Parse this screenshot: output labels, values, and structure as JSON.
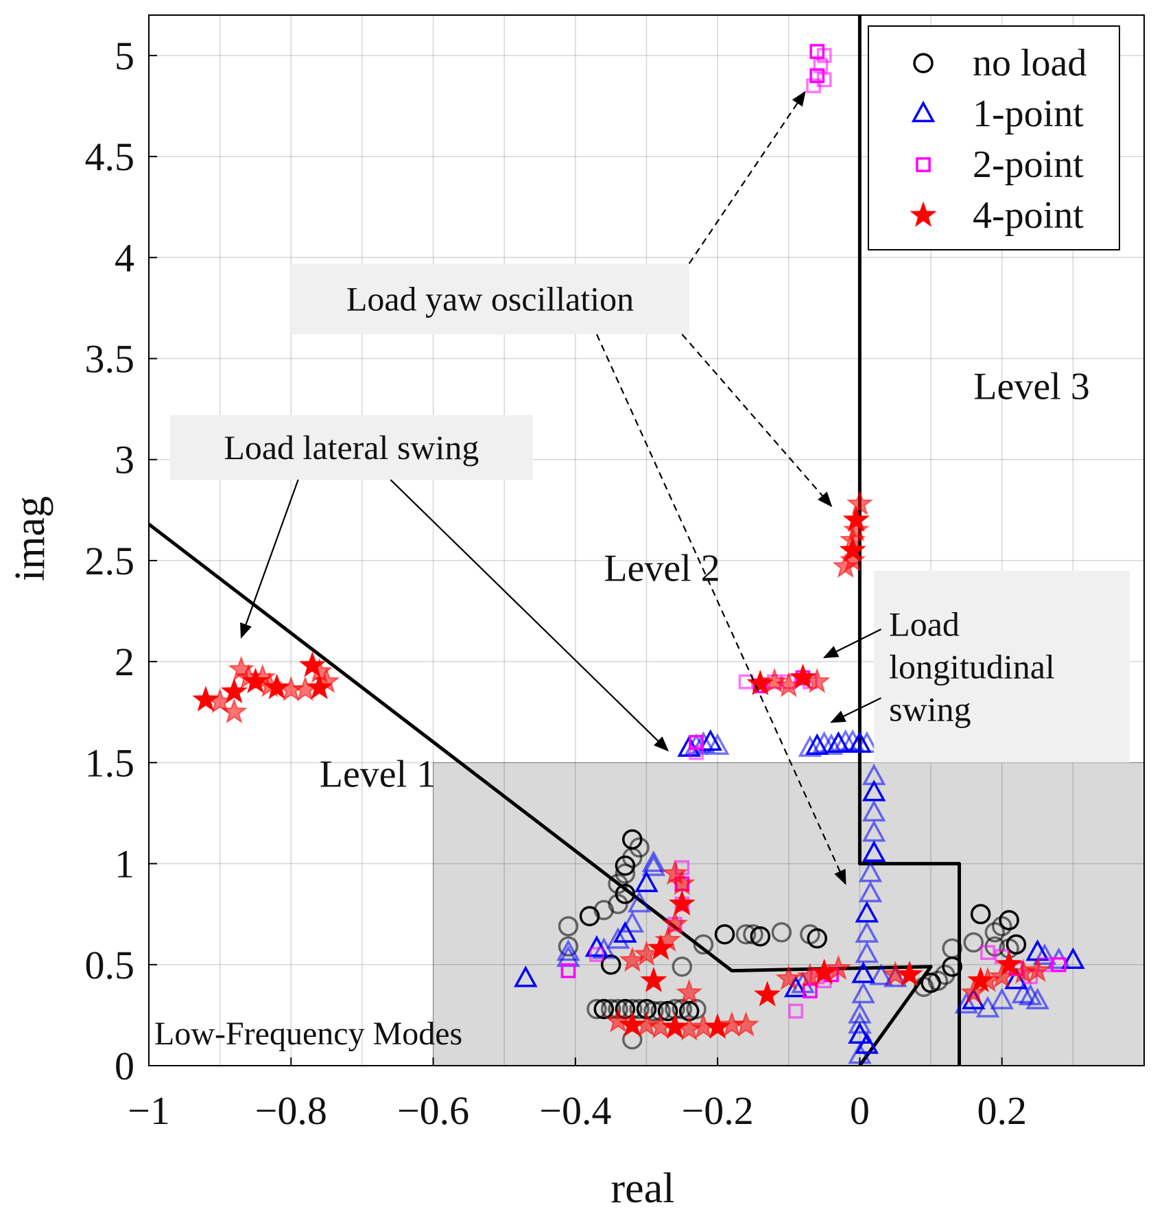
{
  "chart_data": {
    "type": "scatter",
    "title": "",
    "xlabel": "real",
    "ylabel": "imag",
    "xlim": [
      -1,
      0.4
    ],
    "ylim": [
      0,
      5.2
    ],
    "grid": true,
    "legend_position": "top-right",
    "x_ticks": [
      {
        "value": -1,
        "label": "−1"
      },
      {
        "value": -0.8,
        "label": "−0.8"
      },
      {
        "value": -0.6,
        "label": "−0.6"
      },
      {
        "value": -0.4,
        "label": "−0.4"
      },
      {
        "value": -0.2,
        "label": "−0.2"
      },
      {
        "value": 0,
        "label": "0"
      },
      {
        "value": 0.2,
        "label": "0.2"
      }
    ],
    "y_ticks": [
      {
        "value": 0,
        "label": "0"
      },
      {
        "value": 0.5,
        "label": "0.5"
      },
      {
        "value": 1,
        "label": "1"
      },
      {
        "value": 1.5,
        "label": "1.5"
      },
      {
        "value": 2,
        "label": "2"
      },
      {
        "value": 2.5,
        "label": "2.5"
      },
      {
        "value": 3,
        "label": "3"
      },
      {
        "value": 3.5,
        "label": "3.5"
      },
      {
        "value": 4,
        "label": "4"
      },
      {
        "value": 4.5,
        "label": "4.5"
      },
      {
        "value": 5,
        "label": "5"
      }
    ],
    "colors": {
      "no_load": "#000000",
      "one_point": "#0000ff",
      "two_point": "#ff00ff",
      "four_point": "#ff0000",
      "region": "#d9d9d9",
      "boundary": "#000000",
      "annotation_box": "#f0f0f0"
    },
    "region": {
      "label": "Low-Frequency Modes",
      "x_range": [
        -0.6,
        0.4
      ],
      "y_range": [
        0,
        1.5
      ]
    },
    "boundaries": [
      {
        "name": "level-1-2-boundary",
        "points": [
          [
            -1,
            2.68
          ],
          [
            -0.18,
            0.47
          ],
          [
            0.1,
            0.49
          ],
          [
            0,
            0
          ]
        ]
      },
      {
        "name": "level-2-3-boundary",
        "points": [
          [
            0,
            5.2
          ],
          [
            0,
            1.0
          ],
          [
            0.14,
            1.0
          ],
          [
            0.14,
            0
          ]
        ]
      }
    ],
    "level_labels": [
      {
        "text": "Level  1",
        "x": -0.76,
        "y": 1.38
      },
      {
        "text": "Level  2",
        "x": -0.36,
        "y": 2.4
      },
      {
        "text": "Level  3",
        "x": 0.16,
        "y": 3.3
      }
    ],
    "annotations": [
      {
        "name": "lateral-swing",
        "lines": [
          "Load lateral swing"
        ],
        "box": [
          -0.97,
          2.9,
          -0.46,
          3.22
        ],
        "arrows": [
          {
            "from": [
              -0.79,
              2.9
            ],
            "to": [
              -0.87,
              2.12
            ],
            "dashed": false
          },
          {
            "from": [
              -0.66,
              2.9
            ],
            "to": [
              -0.27,
              1.56
            ],
            "dashed": false
          }
        ]
      },
      {
        "name": "yaw-oscillation",
        "lines": [
          "Load yaw oscillation"
        ],
        "box": [
          -0.8,
          3.62,
          -0.24,
          3.97
        ],
        "arrows": [
          {
            "from": [
              -0.24,
              3.97
            ],
            "to": [
              -0.077,
              4.82
            ],
            "dashed": true
          },
          {
            "from": [
              -0.25,
              3.62
            ],
            "to": [
              -0.04,
              2.77
            ],
            "dashed": true
          },
          {
            "from": [
              -0.37,
              3.62
            ],
            "to": [
              -0.02,
              0.9
            ],
            "dashed": true
          }
        ]
      },
      {
        "name": "longitudinal-swing",
        "lines": [
          "Load",
          "longitudinal",
          "swing"
        ],
        "box": [
          0.02,
          1.5,
          0.38,
          2.45
        ],
        "arrows": [
          {
            "from": [
              0.03,
              2.16
            ],
            "to": [
              -0.05,
              2.02
            ],
            "dashed": false
          },
          {
            "from": [
              0.03,
              1.82
            ],
            "to": [
              -0.04,
              1.7
            ],
            "dashed": false
          }
        ]
      }
    ],
    "series": [
      {
        "name": "no load",
        "marker": "circle",
        "color": "#000000",
        "points": [
          [
            -0.32,
            1.12
          ],
          [
            -0.31,
            1.08
          ],
          [
            -0.32,
            1.03
          ],
          [
            -0.33,
            0.99
          ],
          [
            -0.33,
            0.95
          ],
          [
            -0.34,
            0.9
          ],
          [
            -0.33,
            0.85
          ],
          [
            -0.34,
            0.8
          ],
          [
            -0.36,
            0.77
          ],
          [
            -0.38,
            0.74
          ],
          [
            -0.41,
            0.69
          ],
          [
            -0.41,
            0.59
          ],
          [
            -0.35,
            0.5
          ],
          [
            -0.25,
            0.49
          ],
          [
            -0.22,
            0.6
          ],
          [
            -0.19,
            0.65
          ],
          [
            -0.16,
            0.65
          ],
          [
            -0.15,
            0.65
          ],
          [
            -0.14,
            0.64
          ],
          [
            -0.11,
            0.66
          ],
          [
            -0.07,
            0.65
          ],
          [
            -0.06,
            0.63
          ],
          [
            -0.32,
            0.13
          ],
          [
            -0.37,
            0.28
          ],
          [
            -0.36,
            0.28
          ],
          [
            -0.35,
            0.28
          ],
          [
            -0.34,
            0.28
          ],
          [
            -0.33,
            0.28
          ],
          [
            -0.32,
            0.28
          ],
          [
            -0.31,
            0.28
          ],
          [
            -0.3,
            0.28
          ],
          [
            -0.29,
            0.27
          ],
          [
            -0.28,
            0.27
          ],
          [
            -0.27,
            0.27
          ],
          [
            -0.26,
            0.28
          ],
          [
            -0.25,
            0.28
          ],
          [
            -0.24,
            0.27
          ],
          [
            -0.23,
            0.28
          ],
          [
            0.09,
            0.39
          ],
          [
            0.1,
            0.41
          ],
          [
            0.11,
            0.42
          ],
          [
            0.12,
            0.45
          ],
          [
            0.13,
            0.49
          ],
          [
            0.13,
            0.58
          ],
          [
            0.16,
            0.61
          ],
          [
            0.17,
            0.75
          ],
          [
            0.19,
            0.66
          ],
          [
            0.2,
            0.69
          ],
          [
            0.21,
            0.72
          ],
          [
            0.21,
            0.58
          ],
          [
            0.19,
            0.59
          ],
          [
            0.22,
            0.6
          ]
        ]
      },
      {
        "name": "1-point",
        "marker": "triangle",
        "color": "#0000ff",
        "points": [
          [
            -0.47,
            0.43
          ],
          [
            -0.41,
            0.56
          ],
          [
            -0.41,
            0.53
          ],
          [
            -0.37,
            0.58
          ],
          [
            -0.36,
            0.57
          ],
          [
            -0.34,
            0.62
          ],
          [
            -0.33,
            0.65
          ],
          [
            -0.32,
            0.7
          ],
          [
            -0.31,
            0.8
          ],
          [
            -0.3,
            0.9
          ],
          [
            -0.29,
            0.98
          ],
          [
            -0.29,
            1.0
          ],
          [
            -0.24,
            1.57
          ],
          [
            -0.23,
            1.58
          ],
          [
            -0.22,
            1.59
          ],
          [
            -0.21,
            1.6
          ],
          [
            -0.2,
            1.58
          ],
          [
            -0.07,
            1.57
          ],
          [
            -0.06,
            1.58
          ],
          [
            -0.05,
            1.59
          ],
          [
            -0.04,
            1.58
          ],
          [
            -0.03,
            1.59
          ],
          [
            -0.02,
            1.6
          ],
          [
            -0.01,
            1.6
          ],
          [
            0.0,
            1.59
          ],
          [
            0.01,
            1.59
          ],
          [
            0.0,
            0.05
          ],
          [
            0.0,
            0.15
          ],
          [
            0.0,
            0.25
          ],
          [
            0.005,
            0.35
          ],
          [
            0.005,
            0.45
          ],
          [
            0.01,
            0.55
          ],
          [
            0.01,
            0.65
          ],
          [
            0.01,
            0.75
          ],
          [
            0.015,
            0.85
          ],
          [
            0.015,
            0.95
          ],
          [
            0.02,
            1.05
          ],
          [
            0.02,
            1.15
          ],
          [
            0.02,
            1.25
          ],
          [
            0.02,
            1.35
          ],
          [
            0.02,
            1.43
          ],
          [
            0.0,
            0.2
          ],
          [
            0.01,
            0.1
          ],
          [
            0.03,
            0.44
          ],
          [
            0.05,
            0.43
          ],
          [
            -0.09,
            0.38
          ],
          [
            -0.08,
            0.4
          ],
          [
            0.15,
            0.3
          ],
          [
            0.16,
            0.32
          ],
          [
            0.18,
            0.28
          ],
          [
            0.2,
            0.32
          ],
          [
            0.22,
            0.42
          ],
          [
            0.23,
            0.35
          ],
          [
            0.24,
            0.34
          ],
          [
            0.25,
            0.56
          ],
          [
            0.26,
            0.54
          ],
          [
            0.28,
            0.52
          ],
          [
            0.3,
            0.52
          ],
          [
            0.25,
            0.32
          ]
        ]
      },
      {
        "name": "2-point",
        "marker": "square",
        "color": "#ff00ff",
        "points": [
          [
            -0.06,
            5.02
          ],
          [
            -0.05,
            5.0
          ],
          [
            -0.055,
            4.95
          ],
          [
            -0.06,
            4.9
          ],
          [
            -0.05,
            4.88
          ],
          [
            -0.065,
            4.85
          ],
          [
            -0.41,
            0.47
          ],
          [
            -0.37,
            0.55
          ],
          [
            -0.25,
            0.98
          ],
          [
            -0.25,
            0.9
          ],
          [
            -0.25,
            0.8
          ],
          [
            -0.26,
            0.7
          ],
          [
            -0.23,
            1.6
          ],
          [
            -0.23,
            1.55
          ],
          [
            -0.16,
            1.9
          ],
          [
            -0.14,
            1.88
          ],
          [
            -0.12,
            1.9
          ],
          [
            -0.1,
            1.9
          ],
          [
            -0.08,
            1.92
          ],
          [
            -0.07,
            1.9
          ],
          [
            -0.09,
            0.27
          ],
          [
            -0.07,
            0.37
          ],
          [
            -0.06,
            0.44
          ],
          [
            -0.05,
            0.42
          ],
          [
            -0.04,
            0.45
          ],
          [
            0.18,
            0.56
          ],
          [
            0.2,
            0.54
          ],
          [
            0.22,
            0.48
          ],
          [
            0.24,
            0.44
          ],
          [
            0.26,
            0.5
          ],
          [
            0.28,
            0.5
          ]
        ]
      },
      {
        "name": "4-point",
        "marker": "star",
        "color": "#ff0000",
        "points": [
          [
            -0.92,
            1.81
          ],
          [
            -0.9,
            1.8
          ],
          [
            -0.88,
            1.75
          ],
          [
            -0.88,
            1.85
          ],
          [
            -0.87,
            1.96
          ],
          [
            -0.86,
            1.92
          ],
          [
            -0.85,
            1.9
          ],
          [
            -0.84,
            1.92
          ],
          [
            -0.83,
            1.88
          ],
          [
            -0.82,
            1.87
          ],
          [
            -0.8,
            1.86
          ],
          [
            -0.78,
            1.86
          ],
          [
            -0.76,
            1.87
          ],
          [
            -0.75,
            1.9
          ],
          [
            -0.76,
            1.95
          ],
          [
            -0.77,
            1.98
          ],
          [
            -0.02,
            2.47
          ],
          [
            -0.01,
            2.5
          ],
          [
            -0.01,
            2.55
          ],
          [
            -0.01,
            2.6
          ],
          [
            -0.005,
            2.65
          ],
          [
            -0.005,
            2.7
          ],
          [
            0.0,
            2.78
          ],
          [
            -0.06,
            1.9
          ],
          [
            -0.08,
            1.92
          ],
          [
            -0.1,
            1.88
          ],
          [
            -0.12,
            1.9
          ],
          [
            -0.14,
            1.89
          ],
          [
            -0.32,
            0.52
          ],
          [
            -0.3,
            0.55
          ],
          [
            -0.28,
            0.58
          ],
          [
            -0.27,
            0.62
          ],
          [
            -0.26,
            0.7
          ],
          [
            -0.25,
            0.8
          ],
          [
            -0.25,
            0.9
          ],
          [
            -0.26,
            0.95
          ],
          [
            -0.29,
            0.42
          ],
          [
            -0.24,
            0.36
          ],
          [
            -0.16,
            0.2
          ],
          [
            -0.13,
            0.35
          ],
          [
            -0.1,
            0.43
          ],
          [
            -0.07,
            0.44
          ],
          [
            -0.05,
            0.46
          ],
          [
            -0.03,
            0.48
          ],
          [
            -0.34,
            0.22
          ],
          [
            -0.32,
            0.2
          ],
          [
            -0.3,
            0.2
          ],
          [
            -0.28,
            0.19
          ],
          [
            -0.26,
            0.19
          ],
          [
            -0.24,
            0.18
          ],
          [
            -0.22,
            0.19
          ],
          [
            -0.2,
            0.19
          ],
          [
            -0.18,
            0.2
          ],
          [
            0.05,
            0.45
          ],
          [
            0.07,
            0.45
          ],
          [
            0.18,
            0.42
          ],
          [
            0.2,
            0.44
          ],
          [
            0.21,
            0.5
          ],
          [
            0.23,
            0.46
          ],
          [
            0.16,
            0.36
          ],
          [
            0.17,
            0.42
          ],
          [
            0.25,
            0.47
          ]
        ]
      }
    ]
  }
}
